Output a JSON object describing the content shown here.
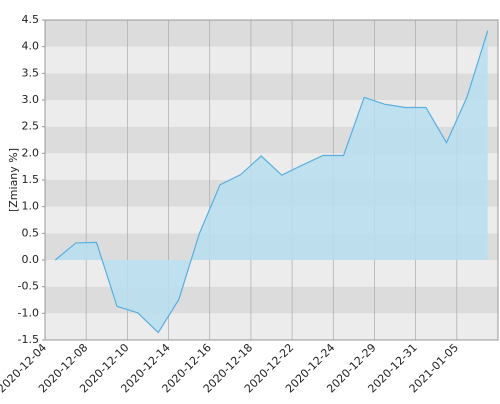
{
  "chart_data": {
    "type": "area",
    "y_label": "[Zmiany %]",
    "x": [
      0.5,
      1.5,
      2.5,
      3.5,
      4.5,
      5.5,
      6.5,
      7.5,
      8.5,
      9.5,
      10.5,
      11.5,
      12.5,
      13.5,
      14.5,
      15.5,
      16.5,
      17.5,
      18.5,
      19.5,
      20.5,
      21.5
    ],
    "values": [
      0.0,
      0.32,
      0.33,
      -0.87,
      -0.99,
      -1.36,
      -0.74,
      0.5,
      1.41,
      1.6,
      1.95,
      1.59,
      1.78,
      1.96,
      1.96,
      3.05,
      2.92,
      2.86,
      2.86,
      2.2,
      3.06,
      4.3
    ],
    "color": "#5aaee0",
    "fill": "#b7dff0",
    "xlim": [
      0,
      22
    ],
    "xticks": [
      {
        "value": 0,
        "label": "2020-12-04"
      },
      {
        "value": 2,
        "label": "2020-12-08"
      },
      {
        "value": 4,
        "label": "2020-12-10"
      },
      {
        "value": 6,
        "label": "2020-12-14"
      },
      {
        "value": 8,
        "label": "2020-12-16"
      },
      {
        "value": 10,
        "label": "2020-12-18"
      },
      {
        "value": 12,
        "label": "2020-12-22"
      },
      {
        "value": 14,
        "label": "2020-12-24"
      },
      {
        "value": 16,
        "label": "2020-12-29"
      },
      {
        "value": 18,
        "label": "2020-12-31"
      },
      {
        "value": 20,
        "label": "2021-01-05"
      }
    ],
    "ylim": [
      -1.5,
      4.5
    ],
    "yticks": [
      {
        "value": -1.5,
        "label": "-1.5"
      },
      {
        "value": -1,
        "label": "-1.0"
      },
      -0.5,
      {
        "value": 0,
        "label": "0.0"
      },
      0.5,
      {
        "value": 1,
        "label": "1.0"
      },
      1.5,
      {
        "value": 2,
        "label": "2.0"
      },
      2.5,
      {
        "value": 3,
        "label": "3.0"
      },
      3.5,
      {
        "value": 4,
        "label": "4.0"
      },
      4.5
    ],
    "grid": true
  }
}
